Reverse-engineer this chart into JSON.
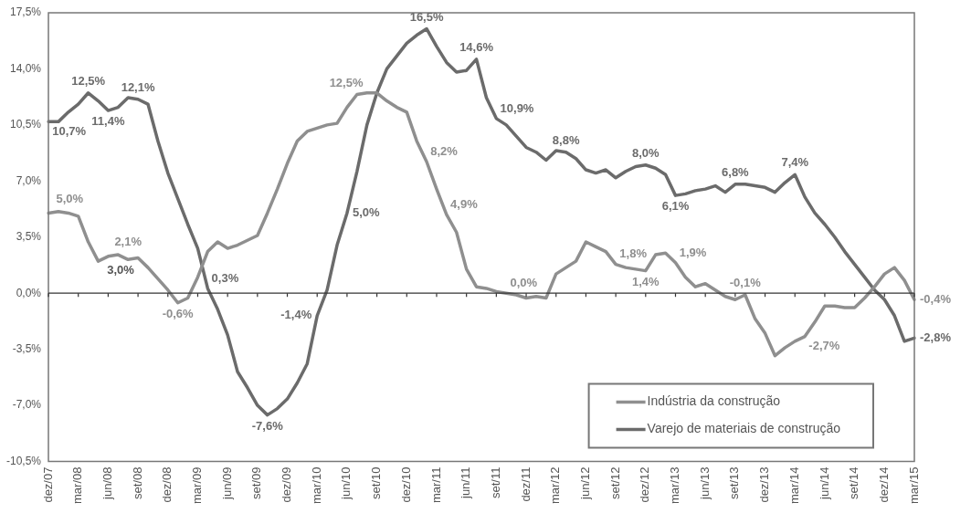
{
  "chart_data": {
    "type": "line",
    "categories": [
      "dez/07",
      null,
      null,
      "mar/08",
      null,
      null,
      "jun/08",
      null,
      null,
      "set/08",
      null,
      null,
      "dez/08",
      null,
      null,
      "mar/09",
      null,
      null,
      "jun/09",
      null,
      null,
      "set/09",
      null,
      null,
      "dez/09",
      null,
      null,
      "mar/10",
      null,
      null,
      "jun/10",
      null,
      null,
      "set/10",
      null,
      null,
      "dez/10",
      null,
      null,
      "mar/11",
      null,
      null,
      "jun/11",
      null,
      null,
      "set/11",
      null,
      null,
      "dez/11",
      null,
      null,
      "mar/12",
      null,
      null,
      "jun/12",
      null,
      null,
      "set/12",
      null,
      null,
      "dez/12",
      null,
      null,
      "mar/13",
      null,
      null,
      "jun/13",
      null,
      null,
      "set/13",
      null,
      null,
      "dez/13",
      null,
      null,
      "mar/14",
      null,
      null,
      "jun/14",
      null,
      null,
      "set/14",
      null,
      null,
      "dez/14",
      null,
      null,
      "mar/15"
    ],
    "series": [
      {
        "name": "Indústria da construção",
        "color": "#8f8f8f",
        "values": [
          5.0,
          5.1,
          5.0,
          4.8,
          3.2,
          2.0,
          2.3,
          2.4,
          2.1,
          2.2,
          1.6,
          0.9,
          0.2,
          -0.6,
          -0.3,
          1.0,
          2.6,
          3.2,
          2.8,
          3.0,
          3.3,
          3.6,
          5.0,
          6.5,
          8.1,
          9.5,
          10.1,
          10.3,
          10.5,
          10.6,
          11.6,
          12.4,
          12.5,
          12.5,
          12.0,
          11.6,
          11.3,
          9.5,
          8.2,
          6.5,
          4.9,
          3.8,
          1.5,
          0.4,
          0.3,
          0.1,
          0.0,
          -0.1,
          -0.3,
          -0.2,
          -0.3,
          1.2,
          1.6,
          2.0,
          3.2,
          2.9,
          2.6,
          1.8,
          1.6,
          1.5,
          1.4,
          2.4,
          2.5,
          1.9,
          1.0,
          0.4,
          0.6,
          0.2,
          -0.2,
          -0.4,
          -0.1,
          -1.6,
          -2.5,
          -3.9,
          -3.4,
          -3.0,
          -2.7,
          -1.8,
          -0.8,
          -0.8,
          -0.9,
          -0.9,
          -0.3,
          0.4,
          1.2,
          1.6,
          0.8,
          -0.4
        ],
        "value_labels": [
          "5,0%",
          null,
          null,
          null,
          null,
          null,
          null,
          null,
          "2,1%",
          null,
          null,
          null,
          null,
          "-0,6%",
          null,
          null,
          null,
          null,
          null,
          null,
          null,
          null,
          null,
          null,
          null,
          null,
          null,
          null,
          null,
          null,
          null,
          null,
          "12,5%",
          null,
          null,
          null,
          null,
          null,
          "8,2%",
          null,
          "4,9%",
          null,
          null,
          null,
          null,
          null,
          "0,0%",
          null,
          null,
          null,
          null,
          null,
          null,
          null,
          null,
          null,
          null,
          "1,8%",
          null,
          null,
          "1,4%",
          null,
          null,
          "1,9%",
          null,
          null,
          null,
          null,
          null,
          null,
          "-0,1%",
          null,
          null,
          null,
          null,
          null,
          "-2,7%",
          null,
          null,
          null,
          null,
          null,
          null,
          null,
          null,
          null,
          null,
          "-0,4%"
        ]
      },
      {
        "name": "Varejo de materiais de construção",
        "color": "#6b6b6b",
        "values": [
          10.7,
          10.7,
          11.3,
          11.8,
          12.5,
          12.0,
          11.4,
          11.6,
          12.2,
          12.1,
          11.8,
          9.5,
          7.5,
          5.9,
          4.3,
          2.8,
          0.3,
          -1.0,
          -2.6,
          -4.9,
          -5.9,
          -7.0,
          -7.6,
          -7.2,
          -6.6,
          -5.6,
          -4.4,
          -1.4,
          0.2,
          3.0,
          5.0,
          7.6,
          10.5,
          12.5,
          14.0,
          14.8,
          15.6,
          16.1,
          16.5,
          15.4,
          14.4,
          13.8,
          13.9,
          14.6,
          12.2,
          10.9,
          10.5,
          9.8,
          9.1,
          8.8,
          8.3,
          8.9,
          8.8,
          8.4,
          7.7,
          7.5,
          7.7,
          7.2,
          7.6,
          7.9,
          8.0,
          7.8,
          7.4,
          6.1,
          6.2,
          6.4,
          6.5,
          6.7,
          6.3,
          6.8,
          6.8,
          6.7,
          6.6,
          6.3,
          6.9,
          7.4,
          6.0,
          5.0,
          4.3,
          3.5,
          2.6,
          1.8,
          1.0,
          0.2,
          -0.4,
          -1.4,
          -3.0,
          -2.8
        ],
        "value_labels": [
          "10,7%",
          null,
          null,
          null,
          "12,5%",
          null,
          "11,4%",
          null,
          null,
          "12,1%",
          null,
          null,
          null,
          null,
          null,
          null,
          "0,3%",
          null,
          null,
          null,
          null,
          null,
          "-7,6%",
          null,
          null,
          null,
          null,
          "-1,4%",
          null,
          null,
          "5,0%",
          null,
          null,
          null,
          null,
          null,
          null,
          null,
          "16,5%",
          null,
          null,
          null,
          null,
          "14,6%",
          null,
          "10,9%",
          null,
          null,
          null,
          null,
          null,
          null,
          "8,8%",
          null,
          null,
          null,
          null,
          null,
          null,
          null,
          "8,0%",
          null,
          null,
          "6,1%",
          null,
          null,
          null,
          null,
          null,
          "6,8%",
          null,
          null,
          null,
          null,
          null,
          "7,4%",
          null,
          null,
          null,
          null,
          null,
          null,
          null,
          null,
          null,
          null,
          null,
          "-2,8%"
        ]
      }
    ],
    "annotations": [
      {
        "text": "3,0%",
        "x": "set/08",
        "y": 2.0
      }
    ],
    "ylim": [
      -10.5,
      17.5
    ],
    "yticks": [
      {
        "value": -10.5,
        "label": "-10,5%"
      },
      {
        "value": -7,
        "label": "-7,0%"
      },
      {
        "value": -3.5,
        "label": "-3,5%"
      },
      {
        "value": 0,
        "label": "0,0%"
      },
      {
        "value": 3.5,
        "label": "3,5%"
      },
      {
        "value": 7,
        "label": "7,0%"
      },
      {
        "value": 10.5,
        "label": "10,5%"
      },
      {
        "value": 14,
        "label": "14,0%"
      },
      {
        "value": 17.5,
        "label": "17,5%"
      }
    ],
    "ref_lines": [
      {
        "axis": "y",
        "value": 0,
        "color": "#333333"
      }
    ],
    "grid": false,
    "legend": "bottom right",
    "marker": "none",
    "line_style": "solid"
  }
}
